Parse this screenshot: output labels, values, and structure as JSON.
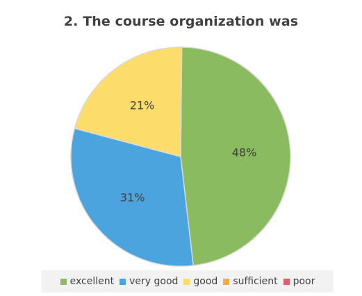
{
  "chart_data": {
    "type": "pie",
    "title": "2. The course organization was",
    "categories": [
      "excellent",
      "very good",
      "good",
      "sufficient",
      "poor"
    ],
    "values": [
      48,
      31,
      21,
      0,
      0
    ],
    "labels": [
      "48%",
      "31%",
      "21%",
      "",
      ""
    ],
    "colors": [
      "#8bbb5f",
      "#4ba4dd",
      "#fcdd6b",
      "#f5a94a",
      "#e05f6a"
    ],
    "legend_position": "bottom"
  }
}
